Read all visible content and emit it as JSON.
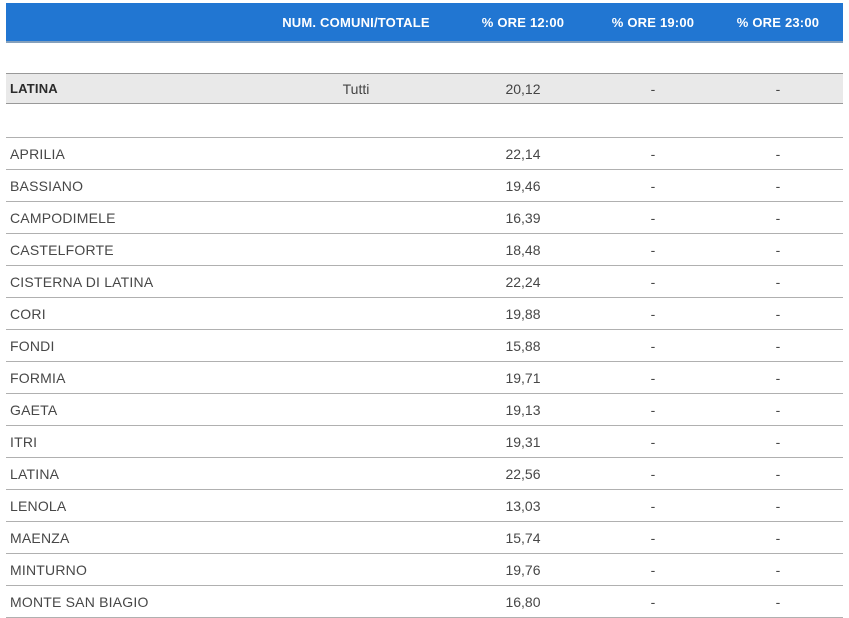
{
  "colors": {
    "header_bg": "#2176d2",
    "header_text": "#ffffff",
    "header_bottom_edge": "#84a0bc",
    "summary_row_bg": "#e9e9e9",
    "summary_row_border": "#999999",
    "data_row_border": "#b0b0b0",
    "body_text": "#3d3d3d"
  },
  "table": {
    "columns": [
      "",
      "NUM. COMUNI/TOTALE",
      "% ORE 12:00",
      "% ORE 19:00",
      "% ORE 23:00"
    ],
    "summary": [
      "LATINA",
      "Tutti",
      "20,12",
      "-",
      "-"
    ],
    "rows": [
      [
        "APRILIA",
        "",
        "22,14",
        "-",
        "-"
      ],
      [
        "BASSIANO",
        "",
        "19,46",
        "-",
        "-"
      ],
      [
        "CAMPODIMELE",
        "",
        "16,39",
        "-",
        "-"
      ],
      [
        "CASTELFORTE",
        "",
        "18,48",
        "-",
        "-"
      ],
      [
        "CISTERNA DI LATINA",
        "",
        "22,24",
        "-",
        "-"
      ],
      [
        "CORI",
        "",
        "19,88",
        "-",
        "-"
      ],
      [
        "FONDI",
        "",
        "15,88",
        "-",
        "-"
      ],
      [
        "FORMIA",
        "",
        "19,71",
        "-",
        "-"
      ],
      [
        "GAETA",
        "",
        "19,13",
        "-",
        "-"
      ],
      [
        "ITRI",
        "",
        "19,31",
        "-",
        "-"
      ],
      [
        "LATINA",
        "",
        "22,56",
        "-",
        "-"
      ],
      [
        "LENOLA",
        "",
        "13,03",
        "-",
        "-"
      ],
      [
        "MAENZA",
        "",
        "15,74",
        "-",
        "-"
      ],
      [
        "MINTURNO",
        "",
        "19,76",
        "-",
        "-"
      ],
      [
        "MONTE SAN BIAGIO",
        "",
        "16,80",
        "-",
        "-"
      ]
    ]
  }
}
